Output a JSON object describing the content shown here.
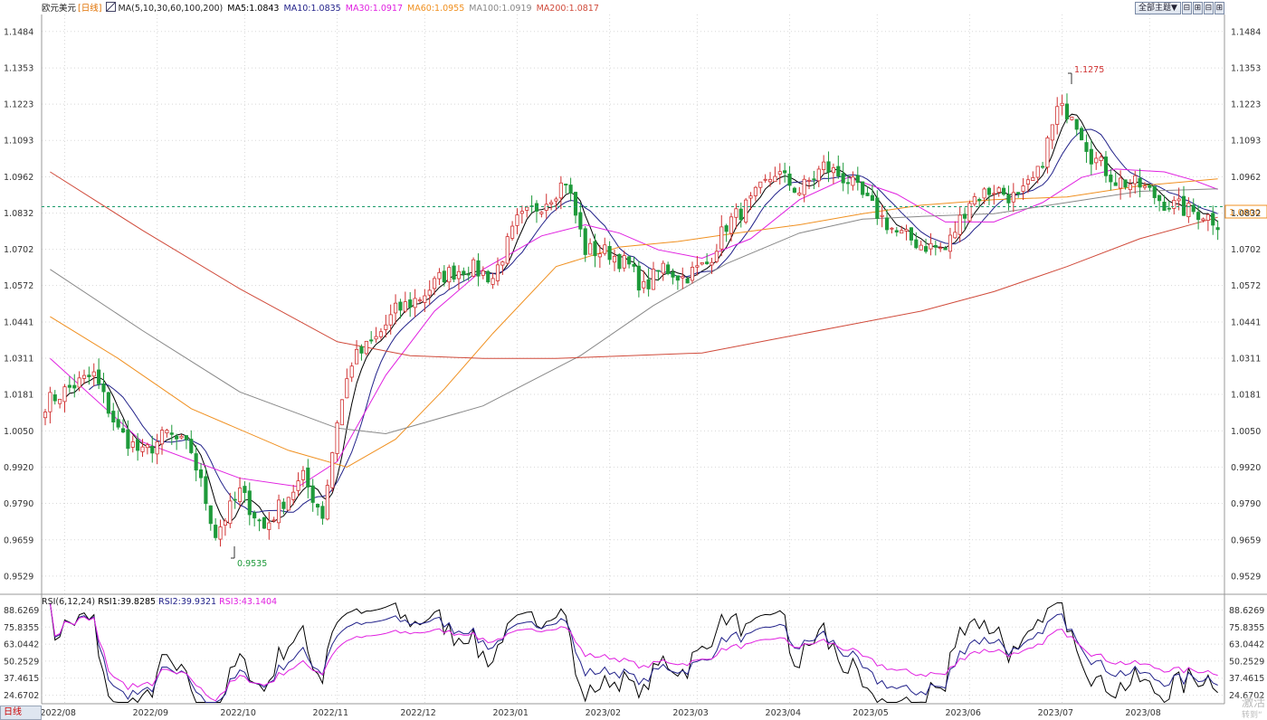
{
  "header": {
    "symbol": "欧元美元",
    "period_label": "[日线]",
    "ma_params": "MA(5,10,30,60,100,200)",
    "ma_values": [
      {
        "label": "MA5:1.0843",
        "color": "#000000"
      },
      {
        "label": "MA10:1.0835",
        "color": "#22228a"
      },
      {
        "label": "MA30:1.0917",
        "color": "#e020e0"
      },
      {
        "label": "MA60:1.0955",
        "color": "#f09020"
      },
      {
        "label": "MA100:1.0919",
        "color": "#888888"
      },
      {
        "label": "MA200:1.0817",
        "color": "#d04a3a"
      }
    ]
  },
  "toolbar": {
    "theme_select": "全部主题▼",
    "buttons": [
      "⊟",
      "⊞",
      "⊟",
      "⊞"
    ]
  },
  "price_axis_labels": [
    "1.1484",
    "1.1353",
    "1.1223",
    "1.1093",
    "1.0962",
    "1.0832",
    "1.0702",
    "1.0572",
    "1.0441",
    "1.0311",
    "1.0181",
    "1.0050",
    "0.9920",
    "0.9790",
    "0.9659",
    "0.9529"
  ],
  "rsi": {
    "legend_params": "RSI(6,12,24)",
    "values": [
      {
        "label": "RSI1:39.8285",
        "color": "#000000"
      },
      {
        "label": "RSI2:39.9321",
        "color": "#22228a"
      },
      {
        "label": "RSI3:43.1404",
        "color": "#e020e0"
      }
    ],
    "axis_labels": [
      "88.6269",
      "75.8355",
      "63.0442",
      "50.2529",
      "37.4615",
      "24.6702"
    ]
  },
  "date_labels": [
    "2022/08",
    "2022/09",
    "2022/10",
    "2022/11",
    "2022/12",
    "2023/01",
    "2023/02",
    "2023/03",
    "2023/04",
    "2023/05",
    "2023/06",
    "2023/07",
    "2023/08"
  ],
  "annotations": {
    "high": "1.1275",
    "low": "0.9535",
    "current_price": "1.0800"
  },
  "bottom_tab": "日线",
  "watermark": "激活",
  "watermark_sub": "转到“",
  "colors": {
    "up": "#d03030",
    "down": "#1e9a3a",
    "grid": "#d8d8d8"
  },
  "chart_data": {
    "type": "candlestick",
    "x_range": [
      "2022/07/27",
      "2023/08/25"
    ],
    "ylim": [
      0.947,
      1.1545
    ],
    "rsi_ylim": [
      18.27,
      95.03
    ],
    "anchors": [
      [
        0,
        1.015
      ],
      [
        6,
        1.0215
      ],
      [
        10,
        1.025
      ],
      [
        15,
        1.005
      ],
      [
        20,
        0.9965
      ],
      [
        25,
        1.004
      ],
      [
        30,
        0.998
      ],
      [
        35,
        0.968
      ],
      [
        40,
        0.983
      ],
      [
        45,
        0.97
      ],
      [
        49,
        0.98
      ],
      [
        53,
        0.988
      ],
      [
        57,
        0.975
      ],
      [
        60,
        1.009
      ],
      [
        63,
        1.03
      ],
      [
        68,
        1.038
      ],
      [
        72,
        1.048
      ],
      [
        77,
        1.053
      ],
      [
        82,
        1.061
      ],
      [
        87,
        1.064
      ],
      [
        92,
        1.06
      ],
      [
        97,
        1.08
      ],
      [
        103,
        1.088
      ],
      [
        107,
        1.095
      ],
      [
        111,
        1.07
      ],
      [
        116,
        1.069
      ],
      [
        120,
        1.064
      ],
      [
        123,
        1.056
      ],
      [
        127,
        1.064
      ],
      [
        131,
        1.06
      ],
      [
        136,
        1.065
      ],
      [
        140,
        1.079
      ],
      [
        145,
        1.087
      ],
      [
        150,
        1.098
      ],
      [
        155,
        1.091
      ],
      [
        160,
        1.1
      ],
      [
        165,
        1.095
      ],
      [
        170,
        1.085
      ],
      [
        175,
        1.076
      ],
      [
        180,
        1.072
      ],
      [
        185,
        1.07
      ],
      [
        190,
        1.088
      ],
      [
        195,
        1.092
      ],
      [
        200,
        1.088
      ],
      [
        204,
        1.097
      ],
      [
        208,
        1.12
      ],
      [
        211,
        1.12
      ],
      [
        215,
        1.104
      ],
      [
        220,
        1.095
      ],
      [
        225,
        1.093
      ],
      [
        230,
        1.087
      ],
      [
        235,
        1.084
      ],
      [
        238,
        1.083
      ],
      [
        241,
        1.08
      ]
    ],
    "ma_series": [
      {
        "label": "MA30",
        "color": "#e020e0",
        "points": [
          [
            1,
            1.031
          ],
          [
            20,
            1.001
          ],
          [
            40,
            0.988
          ],
          [
            52,
            0.985
          ],
          [
            60,
            0.994
          ],
          [
            70,
            1.025
          ],
          [
            80,
            1.048
          ],
          [
            90,
            1.063
          ],
          [
            102,
            1.075
          ],
          [
            111,
            1.079
          ],
          [
            118,
            1.076
          ],
          [
            126,
            1.07
          ],
          [
            135,
            1.067
          ],
          [
            145,
            1.074
          ],
          [
            155,
            1.088
          ],
          [
            165,
            1.096
          ],
          [
            175,
            1.09
          ],
          [
            185,
            1.08
          ],
          [
            195,
            1.08
          ],
          [
            205,
            1.087
          ],
          [
            213,
            1.096
          ],
          [
            220,
            1.099
          ],
          [
            230,
            1.098
          ],
          [
            236,
            1.095
          ],
          [
            241,
            1.0917
          ]
        ]
      },
      {
        "label": "MA60",
        "color": "#f09020",
        "points": [
          [
            1,
            1.046
          ],
          [
            15,
            1.031
          ],
          [
            30,
            1.013
          ],
          [
            50,
            0.998
          ],
          [
            62,
            0.992
          ],
          [
            72,
            1.002
          ],
          [
            82,
            1.02
          ],
          [
            92,
            1.04
          ],
          [
            105,
            1.064
          ],
          [
            118,
            1.071
          ],
          [
            130,
            1.073
          ],
          [
            142,
            1.076
          ],
          [
            155,
            1.079
          ],
          [
            168,
            1.083
          ],
          [
            180,
            1.086
          ],
          [
            195,
            1.088
          ],
          [
            210,
            1.089
          ],
          [
            225,
            1.093
          ],
          [
            241,
            1.0955
          ]
        ]
      },
      {
        "label": "MA100",
        "color": "#888888",
        "points": [
          [
            1,
            1.063
          ],
          [
            20,
            1.041
          ],
          [
            40,
            1.019
          ],
          [
            60,
            1.006
          ],
          [
            70,
            1.004
          ],
          [
            90,
            1.014
          ],
          [
            110,
            1.032
          ],
          [
            125,
            1.05
          ],
          [
            140,
            1.065
          ],
          [
            155,
            1.076
          ],
          [
            168,
            1.081
          ],
          [
            180,
            1.082
          ],
          [
            195,
            1.083
          ],
          [
            210,
            1.087
          ],
          [
            225,
            1.091
          ],
          [
            241,
            1.0919
          ]
        ]
      },
      {
        "label": "MA200",
        "color": "#d04a3a",
        "points": [
          [
            1,
            1.098
          ],
          [
            20,
            1.077
          ],
          [
            40,
            1.056
          ],
          [
            60,
            1.037
          ],
          [
            75,
            1.032
          ],
          [
            90,
            1.031
          ],
          [
            105,
            1.031
          ],
          [
            120,
            1.032
          ],
          [
            135,
            1.033
          ],
          [
            150,
            1.038
          ],
          [
            165,
            1.043
          ],
          [
            180,
            1.048
          ],
          [
            195,
            1.055
          ],
          [
            210,
            1.064
          ],
          [
            225,
            1.074
          ],
          [
            241,
            1.0817
          ]
        ]
      }
    ]
  }
}
